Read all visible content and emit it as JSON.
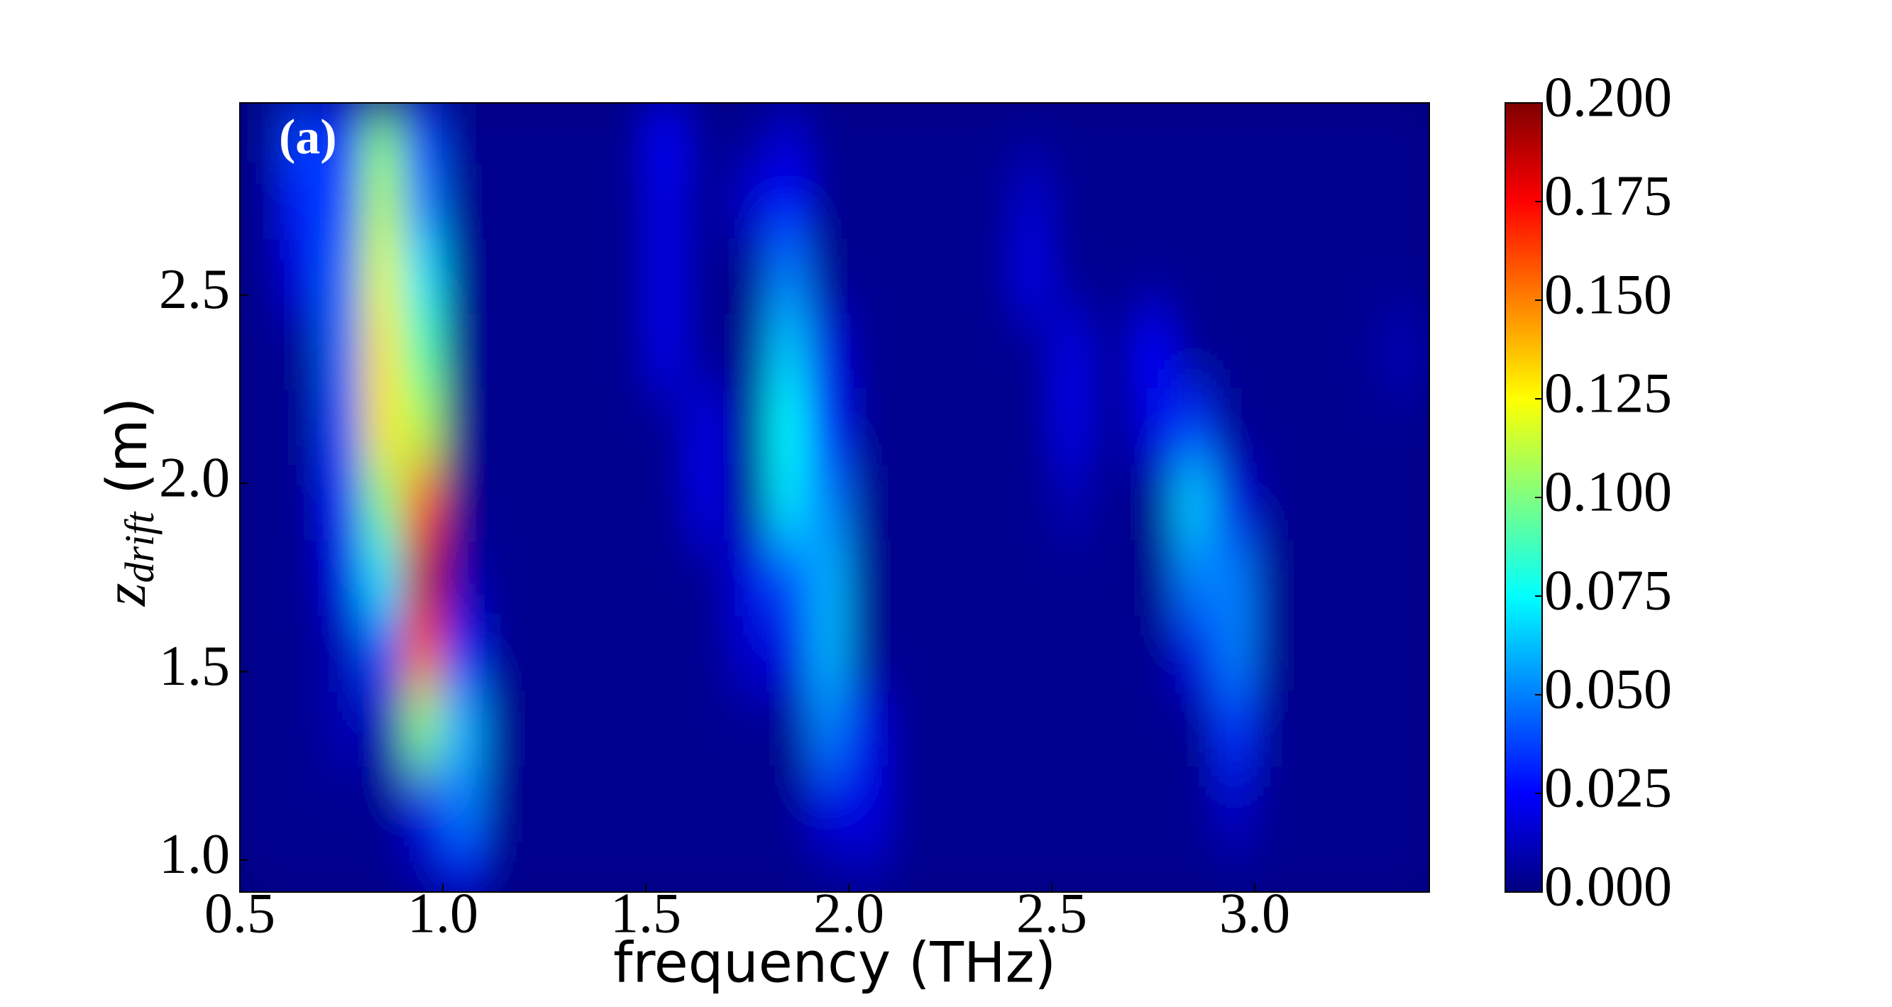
{
  "chart_data": {
    "type": "heatmap",
    "annotation": "(a)",
    "xlabel": "frequency (THz)",
    "ylabel": {
      "var": "z",
      "sub": "drift",
      "unit": "(m)"
    },
    "colormap": "jet",
    "xlim": [
      0.5,
      3.43
    ],
    "ylim": [
      0.915,
      3.01
    ],
    "zlim": [
      0,
      0.2
    ],
    "xticks": [
      0.5,
      {
        "value": 1,
        "label": "1.0"
      },
      1.5,
      {
        "value": 2,
        "label": "2.0"
      },
      2.5,
      {
        "value": 3,
        "label": "3.0"
      }
    ],
    "yticks": [
      {
        "value": 1,
        "label": "1.0"
      },
      1.5,
      {
        "value": 2,
        "label": "2.0"
      },
      2.5
    ],
    "zticks": [
      {
        "value": 0,
        "label": "0.000"
      },
      0.025,
      {
        "value": 0.05,
        "label": "0.050"
      },
      0.075,
      {
        "value": 0.1,
        "label": "0.100"
      },
      0.125,
      {
        "value": 0.15,
        "label": "0.150"
      },
      0.175,
      {
        "value": 0.2,
        "label": "0.200"
      }
    ],
    "x": [
      0.55,
      0.65,
      0.75,
      0.85,
      0.95,
      1.05,
      1.15,
      1.25,
      1.35,
      1.45,
      1.55,
      1.65,
      1.75,
      1.85,
      1.95,
      2.05,
      2.15,
      2.25,
      2.35,
      2.45,
      2.55,
      2.65,
      2.75,
      2.85,
      2.95,
      3.05,
      3.15,
      3.25,
      3.35
    ],
    "y": [
      0.95,
      1.15,
      1.35,
      1.55,
      1.75,
      1.95,
      2.15,
      2.35,
      2.55,
      2.75,
      2.95
    ],
    "z": [
      [
        0.003,
        0.003,
        0.003,
        0.003,
        0.01,
        0.025,
        0.003,
        0.003,
        0.003,
        0.003,
        0.003,
        0.003,
        0.003,
        0.003,
        0.005,
        0.01,
        0.003,
        0.003,
        0.003,
        0.003,
        0.003,
        0.003,
        0.003,
        0.003,
        0.003,
        0.003,
        0.003,
        0.003,
        0.003
      ],
      [
        0.003,
        0.003,
        0.003,
        0.003,
        0.02,
        0.05,
        0.003,
        0.003,
        0.003,
        0.003,
        0.003,
        0.003,
        0.003,
        0.003,
        0.02,
        0.02,
        0.003,
        0.003,
        0.003,
        0.003,
        0.003,
        0.003,
        0.003,
        0.003,
        0.015,
        0.003,
        0.003,
        0.003,
        0.003
      ],
      [
        0.003,
        0.003,
        0.01,
        0.01,
        0.1,
        0.06,
        0.003,
        0.003,
        0.003,
        0.003,
        0.003,
        0.003,
        0.003,
        0.003,
        0.05,
        0.02,
        0.003,
        0.003,
        0.003,
        0.003,
        0.003,
        0.003,
        0.003,
        0.003,
        0.035,
        0.003,
        0.003,
        0.003,
        0.003
      ],
      [
        0.003,
        0.003,
        0.01,
        0.04,
        0.16,
        0.03,
        0.003,
        0.003,
        0.003,
        0.003,
        0.003,
        0.003,
        0.015,
        0.02,
        0.06,
        0.003,
        0.003,
        0.003,
        0.003,
        0.003,
        0.003,
        0.003,
        0.003,
        0.02,
        0.05,
        0.003,
        0.003,
        0.003,
        0.003
      ],
      [
        0.003,
        0.003,
        0.02,
        0.07,
        0.19,
        0.01,
        0.003,
        0.003,
        0.003,
        0.003,
        0.003,
        0.003,
        0.02,
        0.04,
        0.06,
        0.003,
        0.003,
        0.003,
        0.003,
        0.003,
        0.003,
        0.003,
        0.003,
        0.05,
        0.05,
        0.003,
        0.003,
        0.003,
        0.003
      ],
      [
        0.003,
        0.003,
        0.03,
        0.1,
        0.16,
        0.003,
        0.003,
        0.003,
        0.003,
        0.003,
        0.003,
        0.02,
        0.003,
        0.07,
        0.05,
        0.003,
        0.003,
        0.003,
        0.003,
        0.003,
        0.01,
        0.003,
        0.003,
        0.065,
        0.02,
        0.003,
        0.003,
        0.003,
        0.003
      ],
      [
        0.003,
        0.003,
        0.04,
        0.13,
        0.11,
        0.003,
        0.003,
        0.003,
        0.003,
        0.003,
        0.003,
        0.02,
        0.003,
        0.075,
        0.03,
        0.003,
        0.003,
        0.003,
        0.003,
        0.003,
        0.02,
        0.003,
        0.02,
        0.035,
        0.003,
        0.003,
        0.003,
        0.003,
        0.003
      ],
      [
        0.003,
        0.003,
        0.045,
        0.13,
        0.09,
        0.003,
        0.003,
        0.003,
        0.003,
        0.003,
        0.02,
        0.003,
        0.003,
        0.065,
        0.02,
        0.003,
        0.003,
        0.003,
        0.003,
        0.003,
        0.02,
        0.003,
        0.025,
        0.003,
        0.003,
        0.003,
        0.003,
        0.003,
        0.01
      ],
      [
        0.003,
        0.02,
        0.045,
        0.12,
        0.07,
        0.003,
        0.003,
        0.003,
        0.003,
        0.003,
        0.02,
        0.003,
        0.003,
        0.05,
        0.003,
        0.003,
        0.003,
        0.003,
        0.003,
        0.02,
        0.003,
        0.003,
        0.003,
        0.003,
        0.003,
        0.003,
        0.003,
        0.003,
        0.003
      ],
      [
        0.003,
        0.03,
        0.04,
        0.11,
        0.05,
        0.003,
        0.003,
        0.003,
        0.003,
        0.003,
        0.02,
        0.003,
        0.015,
        0.025,
        0.003,
        0.003,
        0.003,
        0.003,
        0.003,
        0.015,
        0.003,
        0.003,
        0.003,
        0.003,
        0.003,
        0.003,
        0.003,
        0.003,
        0.003
      ],
      [
        0.003,
        0.04,
        0.03,
        0.1,
        0.04,
        0.003,
        0.003,
        0.003,
        0.003,
        0.003,
        0.025,
        0.003,
        0.003,
        0.015,
        0.003,
        0.003,
        0.003,
        0.003,
        0.003,
        0.003,
        0.003,
        0.003,
        0.003,
        0.003,
        0.003,
        0.003,
        0.003,
        0.003,
        0.003
      ]
    ]
  }
}
